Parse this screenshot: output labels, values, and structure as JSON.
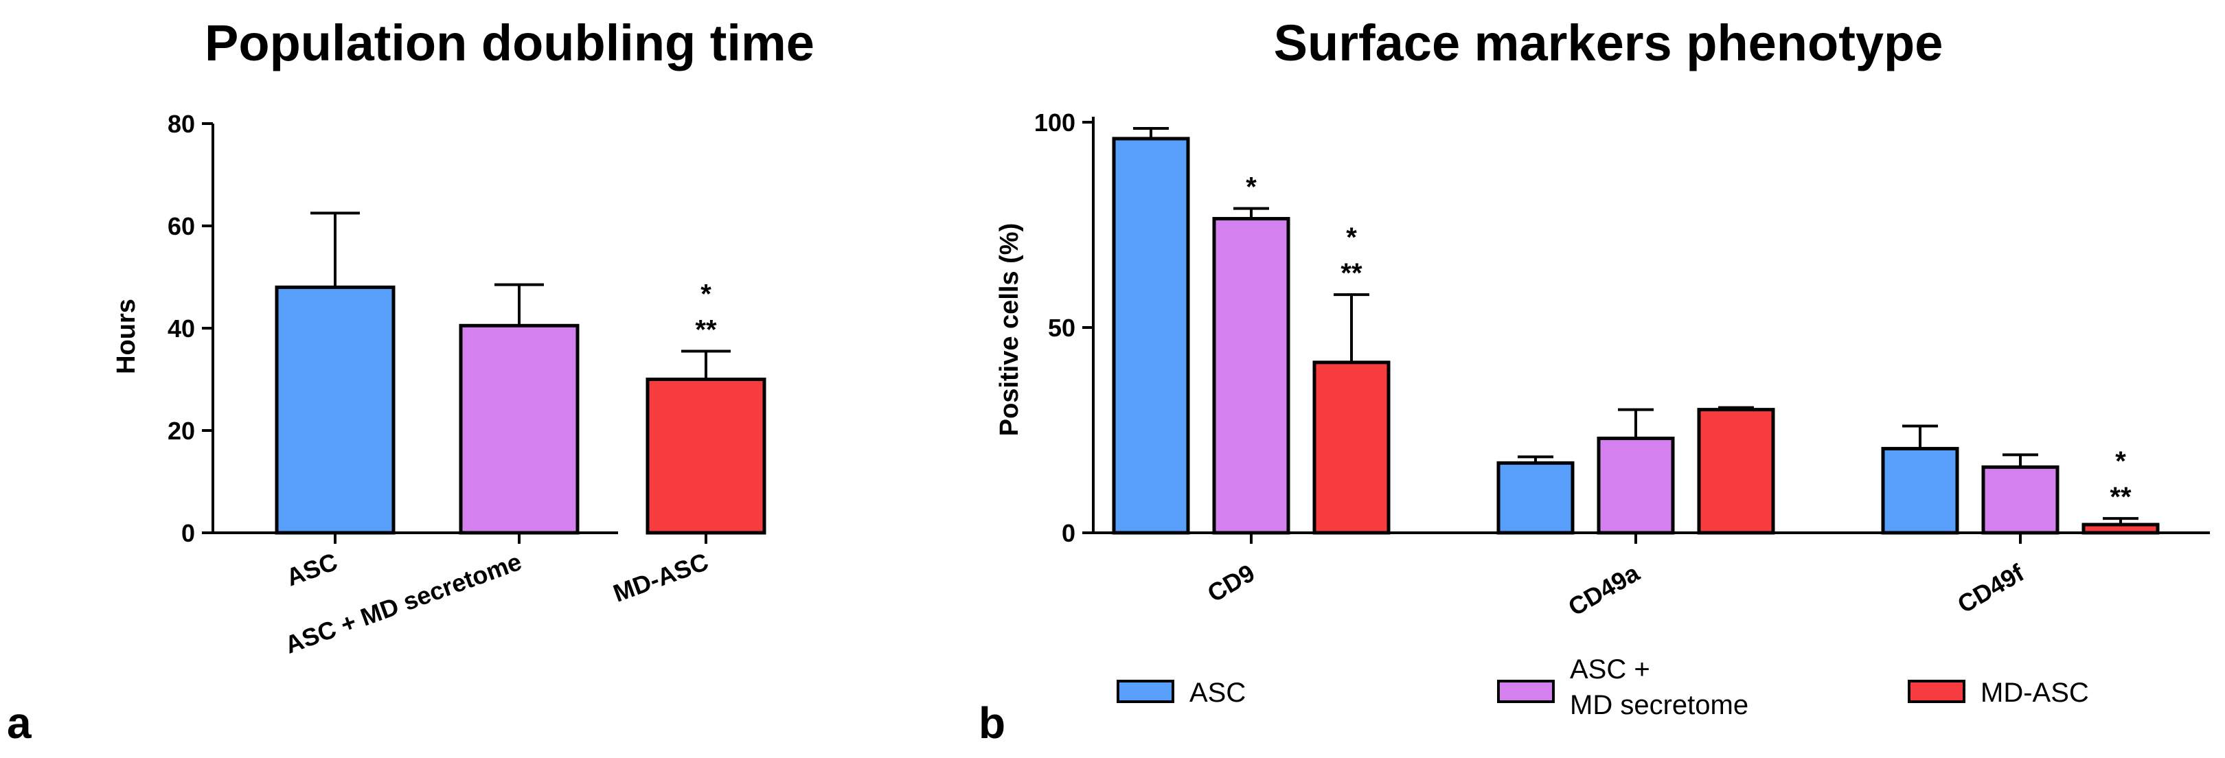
{
  "colors": {
    "ASC": "#579ffb",
    "ASC_MD": "#d580ef",
    "MD_ASC": "#f63c3e"
  },
  "chart_data": [
    {
      "type": "bar",
      "title": "Population doubling time",
      "ylabel": "Hours",
      "xlabel": "",
      "ylim": [
        0,
        80
      ],
      "yticks": [
        0,
        20,
        40,
        60,
        80
      ],
      "panel_label": "a",
      "categories": [
        "ASC",
        "ASC + MD secretome",
        "MD-ASC"
      ],
      "values": [
        48,
        40.5,
        30
      ],
      "errors": [
        14.5,
        8,
        5.5
      ],
      "significance": [
        "",
        "",
        "*\n**"
      ]
    },
    {
      "type": "bar",
      "title": "Surface markers phenotype",
      "ylabel": "Positive cells (%)",
      "xlabel": "",
      "ylim": [
        0,
        100
      ],
      "yticks": [
        0,
        50,
        100
      ],
      "panel_label": "b",
      "categories": [
        "CD9",
        "CD49a",
        "CD49f"
      ],
      "series": [
        {
          "name": "ASC",
          "values": [
            96,
            17,
            20.5
          ],
          "errors": [
            2.5,
            1.5,
            5.5
          ],
          "significance": [
            "",
            "",
            ""
          ]
        },
        {
          "name": "ASC + MD secretome",
          "values": [
            76.5,
            23,
            16
          ],
          "errors": [
            2.5,
            7,
            3
          ],
          "significance": [
            "*",
            "",
            ""
          ]
        },
        {
          "name": "MD-ASC",
          "values": [
            41.5,
            30,
            2
          ],
          "errors": [
            16.5,
            0.5,
            1.5
          ],
          "significance": [
            "*\n**",
            "",
            "*\n**"
          ]
        }
      ],
      "legend": [
        {
          "label": "ASC"
        },
        {
          "label": "ASC +\nMD secretome"
        },
        {
          "label": "MD-ASC"
        }
      ],
      "legend_position": "bottom"
    }
  ]
}
